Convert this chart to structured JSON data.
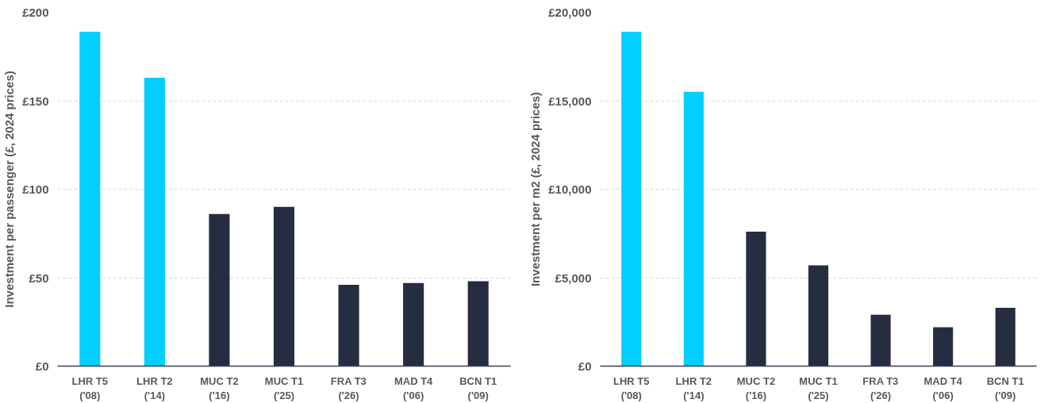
{
  "chart_data": [
    {
      "type": "bar",
      "ylabel": "Investment per passenger (£, 2024 prices)",
      "categories": [
        "LHR T5\n('08)",
        "LHR T2\n('14)",
        "MUC T2\n('16)",
        "MUC T1\n('25)",
        "FRA T3\n('26)",
        "MAD T4\n('06)",
        "BCN T1\n('09)"
      ],
      "values": [
        189,
        163,
        86,
        90,
        46,
        47,
        48
      ],
      "colors": [
        "#00cfff",
        "#00cfff",
        "#272d40",
        "#272d40",
        "#272d40",
        "#272d40",
        "#272d40"
      ],
      "ylim": [
        0,
        200
      ],
      "yticks": [
        {
          "value": 0,
          "label": "£0"
        },
        {
          "value": 50,
          "label": "£50"
        },
        {
          "value": 100,
          "label": "£100"
        },
        {
          "value": 150,
          "label": "£150"
        },
        {
          "value": 200,
          "label": "£200"
        }
      ],
      "grid": "y"
    },
    {
      "type": "bar",
      "ylabel": "Investment per m2 (£, 2024 prices)",
      "categories": [
        "LHR T5\n('08)",
        "LHR T2\n('14)",
        "MUC T2\n('16)",
        "MUC T1\n('25)",
        "FRA T3\n('26)",
        "MAD T4\n('06)",
        "BCN T1\n('09)"
      ],
      "values": [
        18900,
        15500,
        7600,
        5700,
        2900,
        2200,
        3300
      ],
      "colors": [
        "#00cfff",
        "#00cfff",
        "#272d40",
        "#272d40",
        "#272d40",
        "#272d40",
        "#272d40"
      ],
      "ylim": [
        0,
        20000
      ],
      "yticks": [
        {
          "value": 0,
          "label": "£0"
        },
        {
          "value": 5000,
          "label": "£5,000"
        },
        {
          "value": 10000,
          "label": "£10,000"
        },
        {
          "value": 15000,
          "label": "£15,000"
        },
        {
          "value": 20000,
          "label": "£20,000"
        }
      ],
      "grid": "y"
    }
  ]
}
